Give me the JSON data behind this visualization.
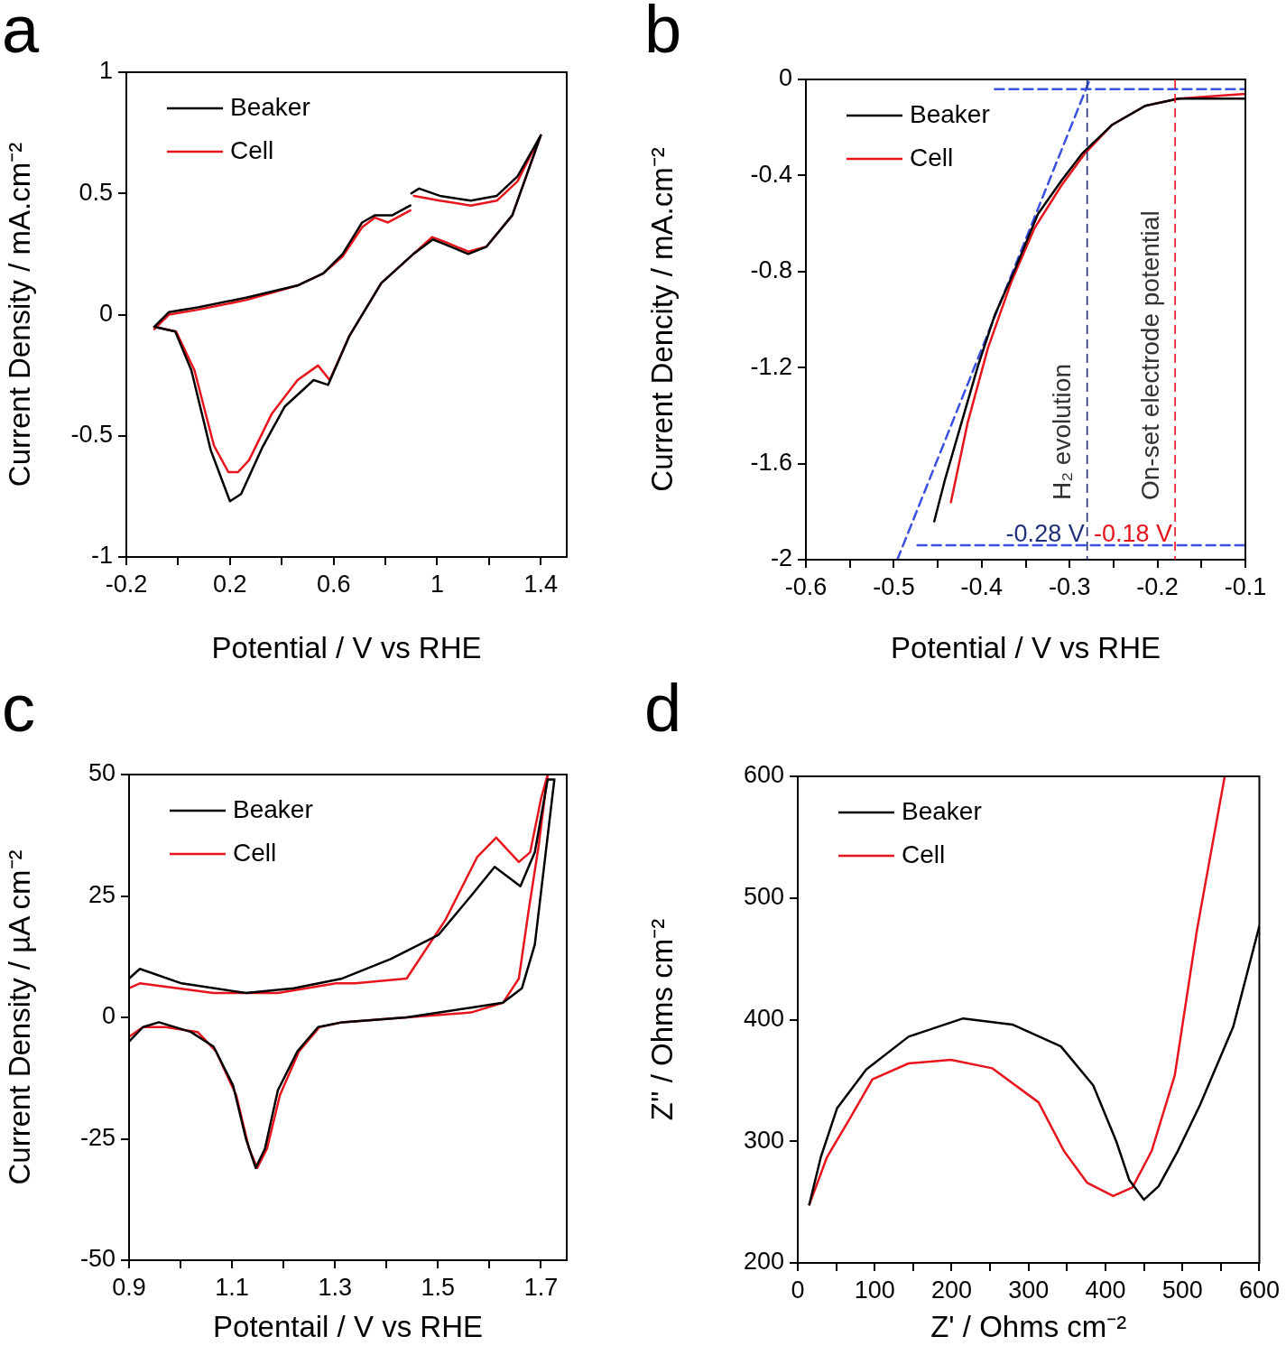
{
  "chart_data": [
    {
      "type": "line",
      "title": "a",
      "xlabel": "Potential / V vs RHE",
      "ylabel": "Current Density / mA.cm⁻²",
      "xlim": [
        -0.2,
        1.5
      ],
      "ylim": [
        -1,
        1
      ],
      "xticks": [
        -0.2,
        {
          "value": 0,
          "label": null
        },
        0.2,
        {
          "value": 0.4,
          "label": null
        },
        0.6,
        {
          "value": 0.8,
          "label": null
        },
        1,
        {
          "value": 1.2,
          "label": null
        },
        1.4
      ],
      "yticks": [
        -1,
        -0.5,
        0,
        0.5,
        1
      ],
      "legend": "top left",
      "marker": "none",
      "series": [
        {
          "name": "Beaker",
          "color": "#000000",
          "x": [
            -0.092,
            -0.011,
            0.051,
            0.126,
            0.2,
            0.243,
            0.324,
            0.411,
            0.523,
            0.579,
            0.66,
            0.784,
            0.908,
            0.983,
            1.03,
            1.12,
            1.19,
            1.29,
            1.4,
            1.31,
            1.23,
            1.13,
            1.01,
            0.93,
            0.9,
            0.898,
            0.896,
            0.827,
            0.76,
            0.71,
            0.635,
            0.56,
            0.46,
            0.262,
            0.076,
            -0.036,
            -0.092
          ],
          "values": [
            -0.05,
            -0.07,
            -0.23,
            -0.56,
            -0.77,
            -0.74,
            -0.55,
            -0.38,
            -0.27,
            -0.29,
            -0.09,
            0.13,
            0.25,
            0.31,
            0.29,
            0.25,
            0.28,
            0.41,
            0.74,
            0.57,
            0.49,
            0.47,
            0.49,
            0.52,
            0.5,
            null,
            0.45,
            0.41,
            0.41,
            0.38,
            0.25,
            0.17,
            0.12,
            0.07,
            0.03,
            0.01,
            -0.05
          ]
        },
        {
          "name": "Cell",
          "color": "#e8141c",
          "x": [
            -0.092,
            -0.008,
            0.063,
            0.138,
            0.194,
            0.231,
            0.274,
            0.361,
            0.461,
            0.54,
            0.585,
            0.66,
            0.784,
            0.908,
            0.98,
            1.03,
            1.12,
            1.19,
            1.29,
            1.4,
            1.31,
            1.23,
            1.13,
            1.01,
            0.91,
            0.898,
            0.896,
            0.81,
            0.76,
            0.71,
            0.635,
            0.56,
            0.46,
            0.262,
            0.076,
            -0.036,
            -0.092
          ],
          "values": [
            -0.05,
            -0.07,
            -0.23,
            -0.54,
            -0.65,
            -0.65,
            -0.6,
            -0.41,
            -0.27,
            -0.21,
            -0.27,
            -0.09,
            0.13,
            0.25,
            0.32,
            0.3,
            0.26,
            0.28,
            0.41,
            0.74,
            0.55,
            0.47,
            0.45,
            0.47,
            0.49,
            null,
            0.43,
            0.38,
            0.4,
            0.36,
            0.24,
            0.17,
            0.12,
            0.06,
            0.02,
            0.0,
            -0.06
          ]
        }
      ]
    },
    {
      "type": "line",
      "title": "b",
      "xlabel": "Potential / V vs RHE",
      "ylabel": "Current Dencity / mA.cm⁻²",
      "xlim": [
        -0.6,
        -0.1
      ],
      "ylim": [
        -2,
        0
      ],
      "xticks": [
        -0.6,
        {
          "value": -0.55,
          "label": null
        },
        -0.5,
        {
          "value": -0.45,
          "label": null
        },
        -0.4,
        {
          "value": -0.35,
          "label": null
        },
        -0.3,
        {
          "value": -0.25,
          "label": null
        },
        -0.2,
        {
          "value": -0.15,
          "label": null
        },
        -0.1
      ],
      "yticks": [
        -2,
        -1.6,
        -1.2,
        -0.8,
        -0.4,
        0
      ],
      "legend": "top left",
      "marker": "none",
      "series": [
        {
          "name": "Beaker",
          "color": "#000000",
          "x": [
            -0.454,
            -0.442,
            -0.423,
            -0.404,
            -0.385,
            -0.362,
            -0.336,
            -0.309,
            -0.286,
            -0.252,
            -0.214,
            -0.176,
            -0.138,
            -0.1
          ],
          "values": [
            -1.84,
            -1.67,
            -1.43,
            -1.19,
            -0.98,
            -0.79,
            -0.56,
            -0.42,
            -0.31,
            -0.19,
            -0.11,
            -0.08,
            -0.08,
            -0.08
          ]
        },
        {
          "name": "Cell",
          "color": "#e8141c",
          "x": [
            -0.435,
            -0.416,
            -0.393,
            -0.366,
            -0.34,
            -0.309,
            -0.283,
            -0.252,
            -0.214,
            -0.176,
            -0.1
          ],
          "values": [
            -1.76,
            -1.43,
            -1.12,
            -0.84,
            -0.62,
            -0.44,
            -0.31,
            -0.19,
            -0.11,
            -0.08,
            -0.06
          ]
        },
        {
          "type": "line",
          "color": "#3a50e0",
          "line_style": "dashed",
          "x": [
            -0.496,
            -0.277
          ],
          "values": [
            -2,
            0
          ]
        },
        {
          "type": "line",
          "color": "#3a50e0",
          "line_style": "dashed",
          "x": [
            -0.385,
            -0.1
          ],
          "values": [
            -0.04,
            -0.04
          ]
        },
        {
          "type": "line",
          "color": "#3a50e0",
          "line_style": "dashed",
          "x": [
            -0.473,
            -0.1
          ],
          "values": [
            -1.94,
            -1.94
          ]
        }
      ],
      "ref_lines": [
        {
          "axis": "x",
          "value": -0.28,
          "label": "-0.28 V",
          "color": "#1f2f7a",
          "line_style": "dashed"
        },
        {
          "axis": "x",
          "value": -0.18,
          "label": "-0.18 V",
          "color": "#e8141c",
          "line_style": "dashed"
        }
      ],
      "annotations": [
        "H₂ evolution",
        "On-set electrode potential"
      ]
    },
    {
      "type": "line",
      "title": "c",
      "xlabel": "Potentail / V vs RHE",
      "ylabel": "Current Density / µA cm⁻²",
      "xlim": [
        0.9,
        1.75
      ],
      "ylim": [
        -50,
        50
      ],
      "xticks": [
        0.9,
        {
          "value": 1,
          "label": null
        },
        1.1,
        {
          "value": 1.2,
          "label": null
        },
        1.3,
        {
          "value": 1.4,
          "label": null
        },
        1.5,
        {
          "value": 1.6,
          "label": null
        },
        1.7
      ],
      "yticks": [
        -50,
        -25,
        0,
        25,
        50
      ],
      "legend": "top left",
      "marker": "none",
      "series": [
        {
          "name": "Beaker",
          "color": "#000000",
          "x": [
            0.9,
            0.927,
            0.958,
            1.02,
            1.064,
            1.102,
            1.127,
            1.146,
            1.164,
            1.189,
            1.227,
            1.267,
            1.314,
            1.439,
            1.564,
            1.626,
            1.663,
            1.688,
            1.707,
            1.726,
            1.713,
            1.688,
            1.66,
            1.61,
            1.564,
            1.501,
            1.408,
            1.314,
            1.22,
            1.127,
            1.002,
            0.921,
            0.9
          ],
          "values": [
            -5,
            -2,
            -1,
            -3,
            -6,
            -14,
            -25,
            -31,
            -27,
            -15,
            -7,
            -2,
            -1,
            0,
            2,
            3,
            6,
            15,
            32,
            49,
            49,
            34,
            27,
            31,
            25,
            17,
            12,
            8,
            6,
            5,
            7,
            10,
            8
          ]
        },
        {
          "name": "Cell",
          "color": "#e8141c",
          "x": [
            0.9,
            0.927,
            0.971,
            1.033,
            1.069,
            1.108,
            1.133,
            1.149,
            1.168,
            1.193,
            1.23,
            1.27,
            1.314,
            1.439,
            1.564,
            1.626,
            1.657,
            1.676,
            1.695,
            1.713,
            1.7,
            1.679,
            1.657,
            1.613,
            1.576,
            1.514,
            1.439,
            1.339,
            1.302,
            1.189,
            1.064,
            0.921,
            0.9
          ],
          "values": [
            -4,
            -2,
            -2,
            -3,
            -7,
            -16,
            -27,
            -31,
            -27,
            -16,
            -7,
            -2,
            -1,
            0,
            1,
            3,
            8,
            22,
            35,
            50,
            45,
            34,
            32,
            37,
            33,
            20,
            8,
            7,
            7,
            5,
            5,
            7,
            6
          ]
        }
      ]
    },
    {
      "type": "line",
      "title": "d",
      "xlabel": "Z' / Ohms cm⁻²",
      "ylabel": "Z'' / Ohms cm⁻²",
      "xlim": [
        0,
        600
      ],
      "ylim": [
        200,
        600
      ],
      "xticks": [
        0,
        {
          "value": 50,
          "label": null
        },
        100,
        {
          "value": 150,
          "label": null
        },
        200,
        {
          "value": 250,
          "label": null
        },
        300,
        {
          "value": 350,
          "label": null
        },
        400,
        {
          "value": 450,
          "label": null
        },
        500,
        {
          "value": 550,
          "label": null
        },
        600
      ],
      "yticks": [
        200,
        300,
        400,
        500,
        600
      ],
      "legend": "top left",
      "marker": "none",
      "series": [
        {
          "name": "Beaker",
          "color": "#000000",
          "x": [
            15,
            30,
            51,
            89,
            144,
            215,
            279,
            342,
            384,
            414,
            431,
            450,
            469,
            494,
            523,
            566,
            600
          ],
          "values": [
            248,
            287,
            327,
            359,
            386,
            401,
            396,
            378,
            346,
            300,
            268,
            252,
            263,
            292,
            330,
            394,
            477
          ]
        },
        {
          "name": "Cell",
          "color": "#e8141c",
          "x": [
            15,
            38,
            68,
            97,
            144,
            199,
            253,
            313,
            346,
            376,
            410,
            435,
            460,
            490,
            519,
            555
          ],
          "values": [
            248,
            287,
            319,
            351,
            364,
            367,
            360,
            332,
            292,
            266,
            255,
            262,
            292,
            354,
            474,
            600
          ]
        }
      ]
    }
  ]
}
